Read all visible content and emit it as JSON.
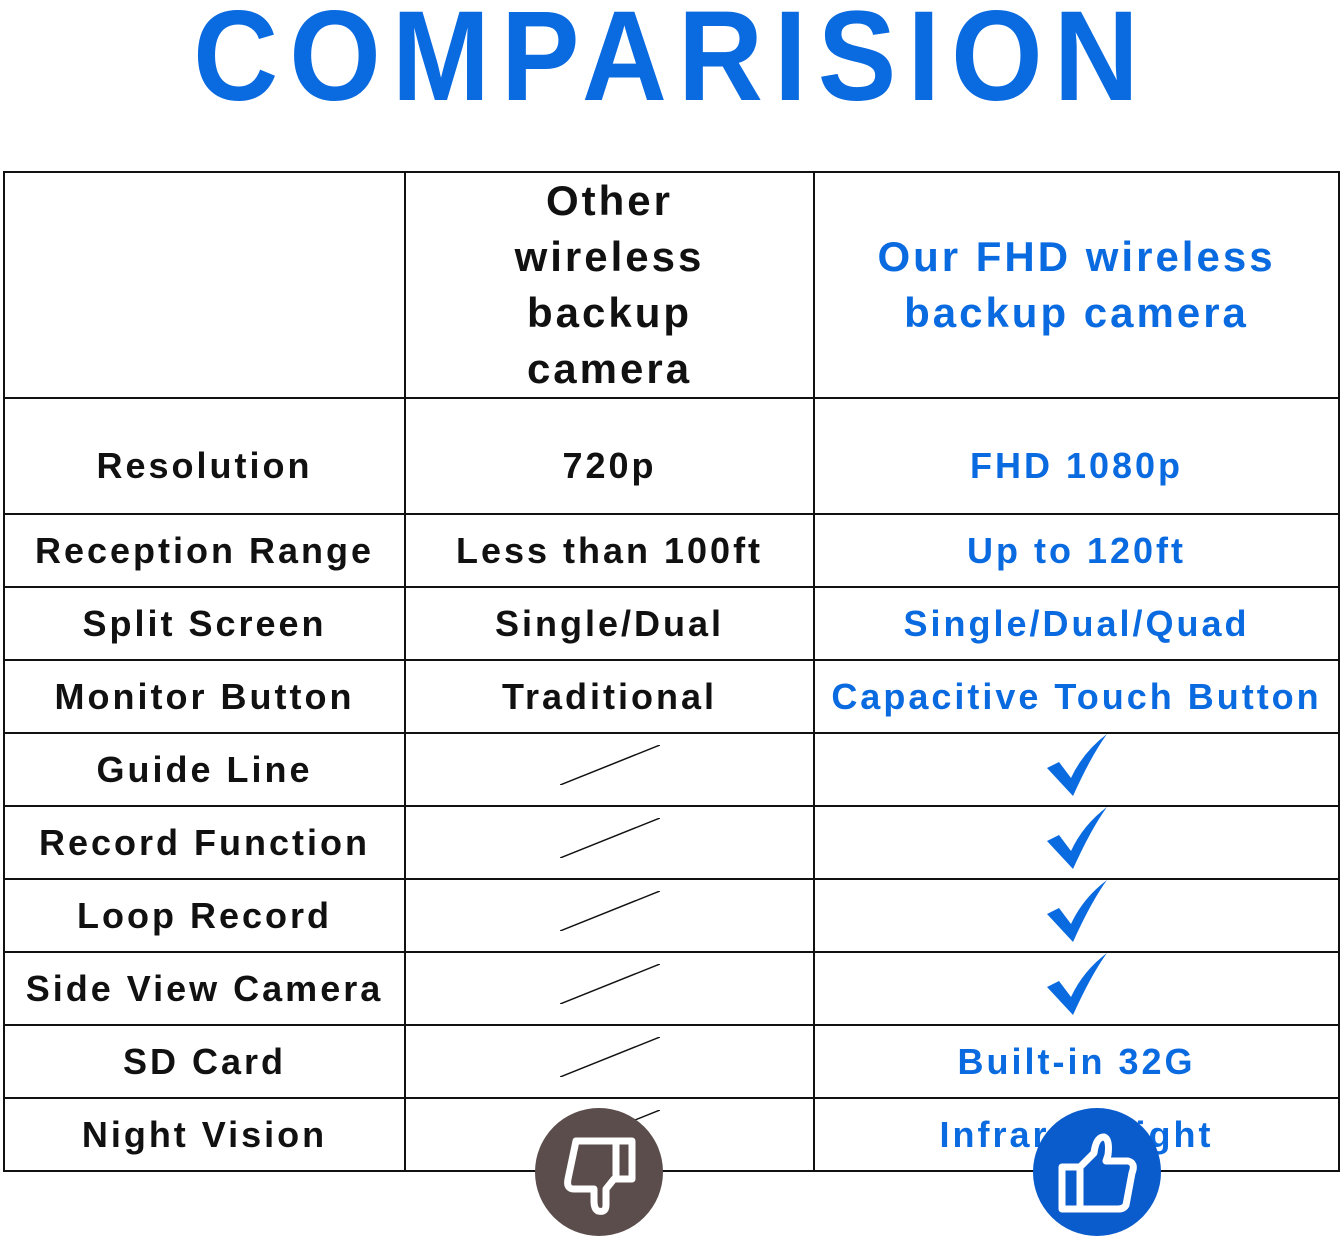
{
  "title": "COMPARISION",
  "colors": {
    "accent": "#0a6ae0",
    "thumbs_down_bg": "#5a4d4c",
    "thumbs_up_bg": "#0a5bcc"
  },
  "header": {
    "corner": "",
    "other": "Other wireless backup camera",
    "ours": "Our FHD wireless backup camera"
  },
  "rows": [
    {
      "feature": "Resolution",
      "other": "720p",
      "ours": "FHD 1080p"
    },
    {
      "feature": "Reception Range",
      "other": "Less than 100ft",
      "ours": "Up to 120ft"
    },
    {
      "feature": "Split Screen",
      "other": "Single/Dual",
      "ours": "Single/Dual/Quad"
    },
    {
      "feature": "Monitor Button",
      "other": "Traditional",
      "ours": "Capacitive Touch Button"
    },
    {
      "feature": "Guide Line",
      "other_icon": "slash-icon",
      "ours_icon": "check-icon"
    },
    {
      "feature": "Record Function",
      "other_icon": "slash-icon",
      "ours_icon": "check-icon"
    },
    {
      "feature": "Loop Record",
      "other_icon": "slash-icon",
      "ours_icon": "check-icon"
    },
    {
      "feature": "Side View Camera",
      "other_icon": "slash-icon",
      "ours_icon": "check-icon"
    },
    {
      "feature": "SD Card",
      "other_icon": "slash-icon",
      "ours": "Built-in 32G"
    },
    {
      "feature": "Night Vision",
      "other_icon": "slash-icon",
      "ours": "Infrared Light"
    }
  ],
  "footer_icons": {
    "other": "thumbs-down-icon",
    "ours": "thumbs-up-icon"
  }
}
